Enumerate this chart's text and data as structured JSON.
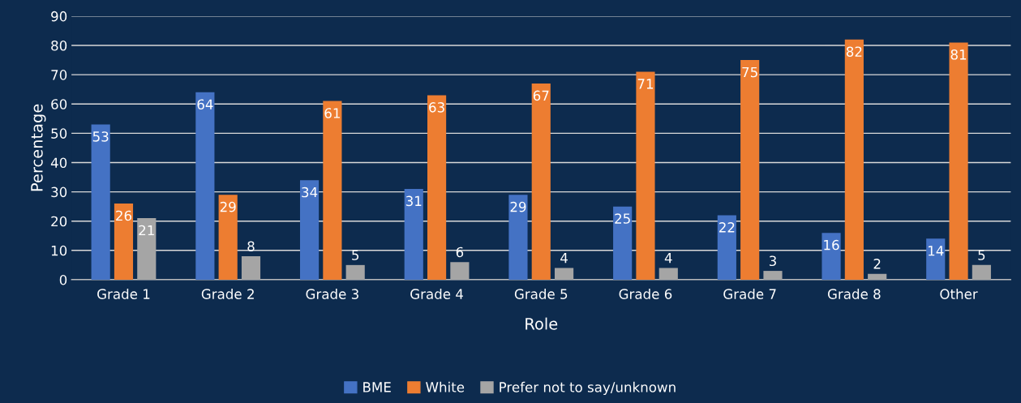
{
  "chart_data": {
    "type": "bar",
    "xlabel": "Role",
    "ylabel": "Percentage",
    "categories": [
      "Grade 1",
      "Grade 2",
      "Grade 3",
      "Grade 4",
      "Grade 5",
      "Grade 6",
      "Grade 7",
      "Grade 8",
      "Other"
    ],
    "series": [
      {
        "name": "BME",
        "color": "#4472c4",
        "values": [
          53,
          64,
          34,
          31,
          29,
          25,
          22,
          16,
          14
        ]
      },
      {
        "name": "White",
        "color": "#ed7d31",
        "values": [
          26,
          29,
          61,
          63,
          67,
          71,
          75,
          82,
          81
        ]
      },
      {
        "name": "Prefer not to say/unknown",
        "color": "#a5a5a5",
        "values": [
          21,
          8,
          5,
          6,
          4,
          4,
          3,
          2,
          5
        ]
      }
    ],
    "ylim": [
      0,
      90
    ],
    "yticks": [
      0,
      10,
      20,
      30,
      40,
      50,
      60,
      70,
      80,
      90
    ],
    "grid": "y",
    "legend": "bottom",
    "data_labels": true
  }
}
